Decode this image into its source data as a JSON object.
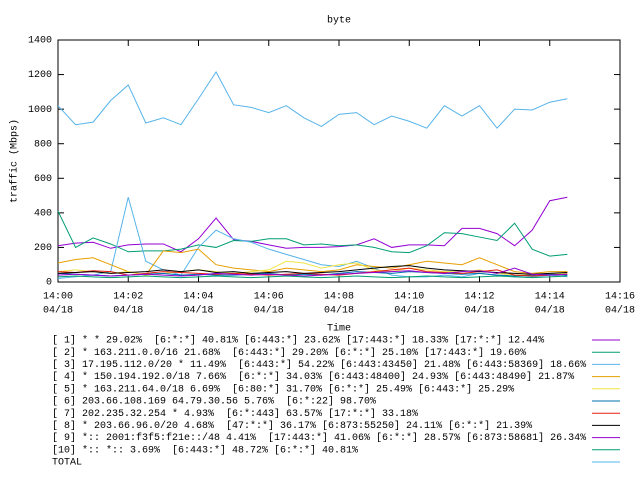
{
  "chart_data": {
    "type": "line",
    "title": "byte",
    "xlabel": "Time",
    "ylabel": "traffic (Mbps)",
    "xlim": [
      0,
      16
    ],
    "ylim": [
      0,
      1400
    ],
    "xticks": [
      {
        "value": 0,
        "label": "14:00",
        "date": "04/18"
      },
      {
        "value": 2,
        "label": "14:02",
        "date": "04/18"
      },
      {
        "value": 4,
        "label": "14:04",
        "date": "04/18"
      },
      {
        "value": 6,
        "label": "14:06",
        "date": "04/18"
      },
      {
        "value": 8,
        "label": "14:08",
        "date": "04/18"
      },
      {
        "value": 10,
        "label": "14:10",
        "date": "04/18"
      },
      {
        "value": 12,
        "label": "14:12",
        "date": "04/18"
      },
      {
        "value": 14,
        "label": "14:14",
        "date": "04/18"
      },
      {
        "value": 16,
        "label": "14:16",
        "date": "04/18"
      }
    ],
    "yticks": [
      0,
      200,
      400,
      600,
      800,
      1000,
      1200,
      1400
    ],
    "x": [
      0,
      0.5,
      1,
      1.5,
      2,
      2.5,
      3,
      3.5,
      4,
      4.5,
      5,
      5.5,
      6,
      6.5,
      7,
      7.5,
      8,
      8.5,
      9,
      9.5,
      10,
      10.5,
      11,
      11.5,
      12,
      12.5,
      13,
      13.5,
      14,
      14.5
    ],
    "series": [
      {
        "name": "[ 1] * * 29.02%  [6:*:*] 40.81% [6:443:*] 23.62% [17:443:*] 18.33% [17:*:*] 12.44%",
        "color": "#9400d3",
        "values": [
          210,
          225,
          230,
          195,
          215,
          220,
          220,
          175,
          250,
          370,
          245,
          235,
          215,
          195,
          200,
          200,
          205,
          215,
          250,
          200,
          215,
          215,
          210,
          310,
          310,
          280,
          210,
          300,
          470,
          490
        ]
      },
      {
        "name": "[ 2] * 163.211.0.0/16 21.68%  [6:443:*] 29.20% [6:*:*] 25.10% [17:443:*] 19.60%",
        "color": "#009e73",
        "values": [
          410,
          200,
          255,
          220,
          175,
          180,
          180,
          190,
          215,
          200,
          240,
          235,
          250,
          250,
          215,
          220,
          210,
          215,
          200,
          175,
          170,
          210,
          285,
          280,
          260,
          240,
          340,
          190,
          150,
          160
        ]
      },
      {
        "name": "[ 3] 17.195.112.0/20 * 11.49%  [6:443:*] 54.22% [6:443:43450] 21.48% [6:443:58369] 18.66%",
        "color": "#56b4e9",
        "values": [
          20,
          30,
          40,
          60,
          490,
          120,
          70,
          40,
          200,
          300,
          250,
          230,
          190,
          160,
          130,
          100,
          90,
          120,
          80,
          40,
          30,
          30,
          40,
          30,
          50,
          40,
          30,
          30,
          40,
          30
        ]
      },
      {
        "name": "[ 4] * 150.194.192.0/18 7.66%  [6:*:*] 34.03% [6:443:48400] 24.93% [6:443:48490] 21.87%",
        "color": "#e69f00",
        "values": [
          110,
          130,
          140,
          100,
          60,
          40,
          180,
          170,
          190,
          100,
          80,
          70,
          60,
          80,
          70,
          60,
          70,
          100,
          90,
          80,
          100,
          120,
          110,
          100,
          140,
          100,
          60,
          50,
          60,
          60
        ]
      },
      {
        "name": "[ 5] * 163.211.64.0/18 6.69%  [6:80:*] 31.70% [6:*:*] 25.49% [6:443:*] 25.29%",
        "color": "#f0e442",
        "values": [
          60,
          70,
          60,
          50,
          60,
          40,
          50,
          60,
          70,
          60,
          50,
          60,
          70,
          120,
          110,
          80,
          100,
          110,
          70,
          60,
          80,
          70,
          60,
          60,
          70,
          50,
          40,
          40,
          50,
          50
        ]
      },
      {
        "name": "[ 6] 203.66.108.169 64.79.30.56 5.76%  [6:*:22] 98.70%",
        "color": "#0072b2",
        "values": [
          50,
          45,
          40,
          35,
          40,
          45,
          50,
          40,
          45,
          40,
          40,
          45,
          50,
          40,
          45,
          40,
          50,
          60,
          55,
          50,
          60,
          55,
          50,
          45,
          50,
          40,
          35,
          40,
          45,
          40
        ]
      },
      {
        "name": "[ 7] 202.235.32.254 * 4.93%  [6:*:443] 63.57% [17:*:*] 33.18%",
        "color": "#e51e10",
        "values": [
          60,
          55,
          65,
          60,
          40,
          50,
          60,
          55,
          50,
          45,
          50,
          45,
          40,
          45,
          50,
          45,
          40,
          50,
          60,
          70,
          80,
          60,
          55,
          50,
          60,
          70,
          40,
          35,
          40,
          45
        ]
      },
      {
        "name": "[ 8] * 203.66.96.0/20 4.68%  [47:*:*] 36.17% [6:873:55250] 24.11% [6:*:*] 21.39%",
        "color": "#000000",
        "values": [
          50,
          55,
          60,
          50,
          55,
          60,
          70,
          60,
          70,
          55,
          60,
          50,
          55,
          60,
          50,
          55,
          60,
          70,
          80,
          90,
          95,
          80,
          70,
          65,
          60,
          55,
          50,
          45,
          50,
          55
        ]
      },
      {
        "name": "[ 9] *:: 2001:f3f5:f21e::/48 4.41%  [17:443:*] 41.06% [6:*:*] 28.57% [6:873:58681] 26.34%",
        "color": "#9400d3",
        "values": [
          40,
          45,
          40,
          35,
          40,
          45,
          40,
          35,
          40,
          50,
          45,
          40,
          45,
          40,
          35,
          40,
          45,
          50,
          55,
          60,
          65,
          55,
          50,
          60,
          65,
          50,
          80,
          45,
          40,
          45
        ]
      },
      {
        "name": "[10] *:: *:: 3.69%  [6:443:*] 48.72% [6:*:*] 40.81%",
        "color": "#009e73",
        "values": [
          30,
          35,
          30,
          25,
          30,
          35,
          30,
          25,
          30,
          35,
          30,
          25,
          30,
          35,
          30,
          25,
          30,
          35,
          30,
          25,
          30,
          35,
          30,
          25,
          30,
          35,
          30,
          25,
          30,
          35
        ]
      },
      {
        "name": "TOTAL",
        "color": "#56b4e9",
        "values": [
          1020,
          910,
          925,
          1050,
          1140,
          920,
          950,
          910,
          1060,
          1215,
          1025,
          1010,
          980,
          1020,
          950,
          900,
          970,
          980,
          910,
          960,
          930,
          890,
          1020,
          960,
          1020,
          890,
          1000,
          995,
          1040,
          1060
        ]
      }
    ]
  }
}
